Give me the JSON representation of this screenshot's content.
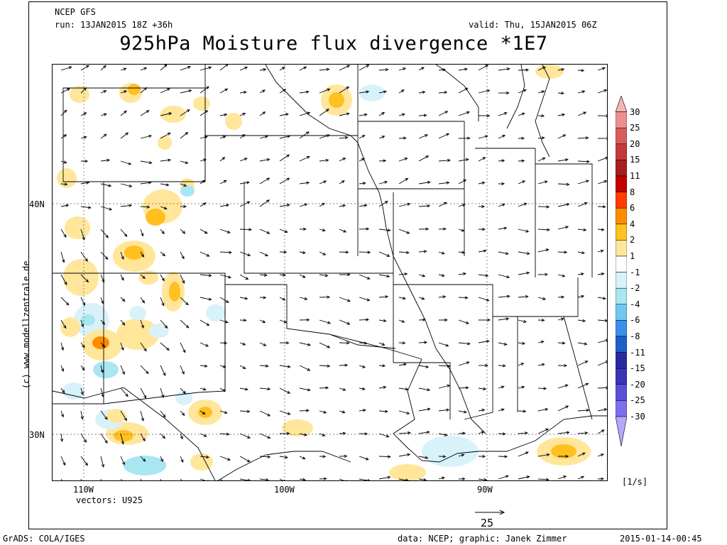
{
  "header": {
    "model": "NCEP GFS",
    "run": "run: 13JAN2015 18Z +36h",
    "valid": "valid: Thu, 15JAN2015 06Z",
    "title": "925hPa Moisture flux divergence *1E7"
  },
  "axes": {
    "lat_labels": [
      "40N",
      "30N"
    ],
    "lon_labels": [
      "110W",
      "100W",
      "90W"
    ]
  },
  "vectors_label": "vectors: U925",
  "vector_scale": "25",
  "units": "[1/s]",
  "side_credit": "(c) www.modellzentrale.de",
  "colorbar": {
    "levels": [
      "30",
      "25",
      "20",
      "15",
      "11",
      "8",
      "6",
      "4",
      "2",
      "1",
      "-1",
      "-2",
      "-4",
      "-6",
      "-8",
      "-11",
      "-15",
      "-20",
      "-25",
      "-30"
    ],
    "colors": [
      "#f5b5b5",
      "#ee8f8f",
      "#d85c5c",
      "#c23a3a",
      "#a81f1f",
      "#c20000",
      "#ff3c00",
      "#ff8c00",
      "#ffc020",
      "#ffe69a",
      "#ffffff",
      "#d8f2fa",
      "#a8e6f2",
      "#6ec8f0",
      "#3a90e8",
      "#1e5fc8",
      "#2a2aa0",
      "#3c34b8",
      "#5a50d8",
      "#7e6ef0",
      "#b4a8f8"
    ]
  },
  "footer": {
    "left": "GrADS: COLA/IGES",
    "center": "data: NCEP; graphic: Janek Zimmer",
    "right": "2015-01-14-00:45"
  }
}
